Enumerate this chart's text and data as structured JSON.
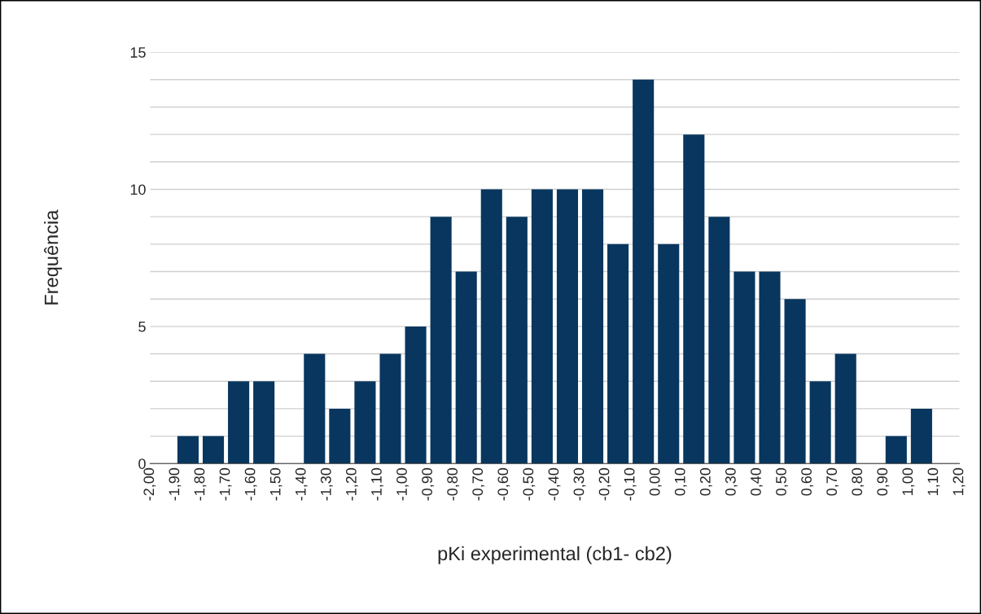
{
  "chart_data": {
    "type": "histogram",
    "xlabel": "pKi experimental (cb1- cb2)",
    "ylabel": "Frequência",
    "bins": [
      -2.0,
      -1.9,
      -1.8,
      -1.7,
      -1.6,
      -1.5,
      -1.4,
      -1.3,
      -1.2,
      -1.1,
      -1.0,
      -0.9,
      -0.8,
      -0.7,
      -0.6,
      -0.5,
      -0.4,
      -0.3,
      -0.2,
      -0.1,
      0.0,
      0.1,
      0.2,
      0.3,
      0.4,
      0.5,
      0.6,
      0.7,
      0.8,
      0.9,
      1.0,
      1.1,
      1.2
    ],
    "values": [
      0,
      1,
      1,
      3,
      3,
      0,
      4,
      2,
      3,
      4,
      5,
      9,
      7,
      10,
      9,
      10,
      10,
      10,
      8,
      14,
      8,
      12,
      9,
      7,
      7,
      6,
      3,
      4,
      0,
      1,
      2,
      0
    ],
    "color": "#08365f",
    "xlim": [
      -2.0,
      1.2
    ],
    "xticks": [
      {
        "value": -2.0,
        "label": "-2,00"
      },
      {
        "value": -1.9,
        "label": "-1,90"
      },
      {
        "value": -1.8,
        "label": "-1,80"
      },
      {
        "value": -1.7,
        "label": "-1,70"
      },
      {
        "value": -1.6,
        "label": "-1,60"
      },
      {
        "value": -1.5,
        "label": "-1,50"
      },
      {
        "value": -1.4,
        "label": "-1,40"
      },
      {
        "value": -1.3,
        "label": "-1,30"
      },
      {
        "value": -1.2,
        "label": "-1,20"
      },
      {
        "value": -1.1,
        "label": "-1,10"
      },
      {
        "value": -1.0,
        "label": "-1,00"
      },
      {
        "value": -0.9,
        "label": "-0,90"
      },
      {
        "value": -0.8,
        "label": "-0,80"
      },
      {
        "value": -0.7,
        "label": "-0,70"
      },
      {
        "value": -0.6,
        "label": "-0,60"
      },
      {
        "value": -0.5,
        "label": "-0,50"
      },
      {
        "value": -0.4,
        "label": "-0,40"
      },
      {
        "value": -0.3,
        "label": "-0,30"
      },
      {
        "value": -0.2,
        "label": "-0,20"
      },
      {
        "value": -0.1,
        "label": "-0,10"
      },
      {
        "value": 0.0,
        "label": "0,00"
      },
      {
        "value": 0.1,
        "label": "0,10"
      },
      {
        "value": 0.2,
        "label": "0,20"
      },
      {
        "value": 0.3,
        "label": "0,30"
      },
      {
        "value": 0.4,
        "label": "0,40"
      },
      {
        "value": 0.5,
        "label": "0,50"
      },
      {
        "value": 0.6,
        "label": "0,60"
      },
      {
        "value": 0.7,
        "label": "0,70"
      },
      {
        "value": 0.8,
        "label": "0,80"
      },
      {
        "value": 0.9,
        "label": "0,90"
      },
      {
        "value": 1.0,
        "label": "1,00"
      },
      {
        "value": 1.1,
        "label": "1,10"
      },
      {
        "value": 1.2,
        "label": "1,20"
      }
    ],
    "ylim": [
      0,
      15
    ],
    "yticks": [
      0,
      {
        "value": 1,
        "label": null
      },
      {
        "value": 2,
        "label": null
      },
      {
        "value": 3,
        "label": null
      },
      {
        "value": 4,
        "label": null
      },
      5,
      {
        "value": 6,
        "label": null
      },
      {
        "value": 7,
        "label": null
      },
      {
        "value": 8,
        "label": null
      },
      {
        "value": 9,
        "label": null
      },
      10,
      {
        "value": 11,
        "label": null
      },
      {
        "value": 12,
        "label": null
      },
      {
        "value": 13,
        "label": null
      },
      {
        "value": 14,
        "label": null
      },
      15
    ],
    "grid": "y"
  }
}
